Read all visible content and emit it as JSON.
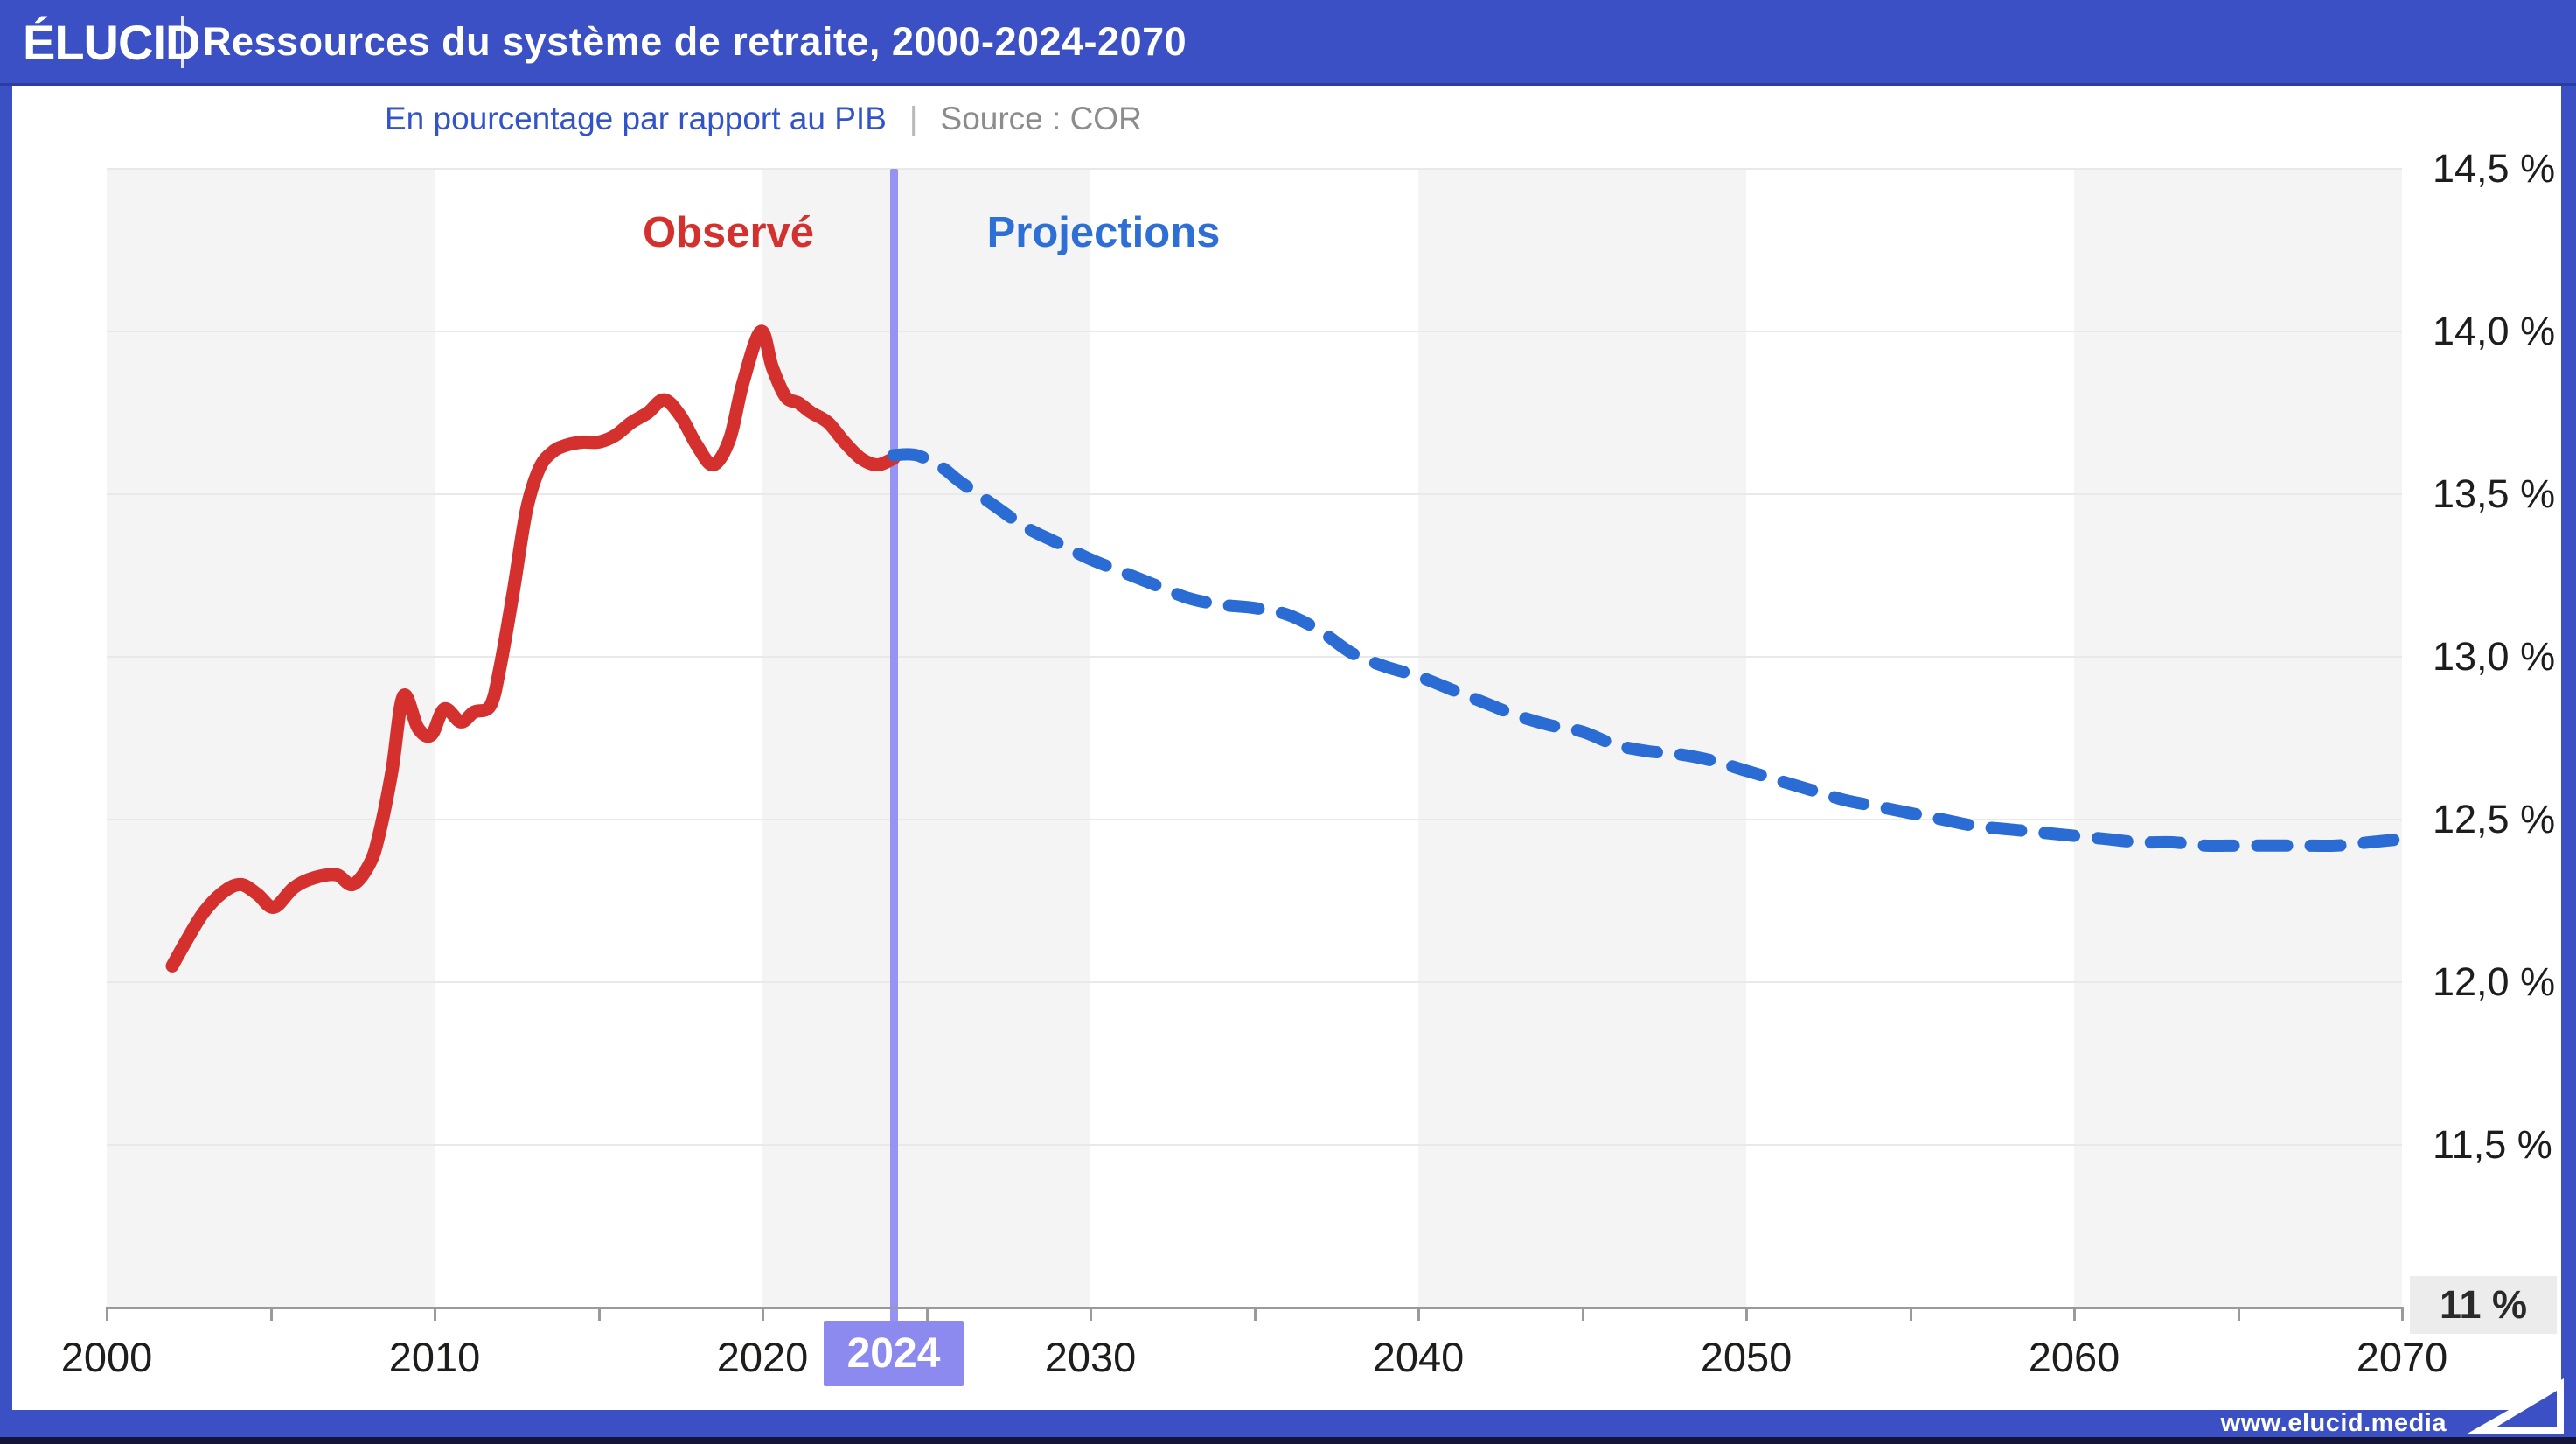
{
  "header": {
    "logo": "ÉLUCID",
    "title": "Ressources du système de retraite, 2000-2024-2070"
  },
  "subtitle": {
    "text": "En pourcentage par rapport au PIB",
    "divider": "|",
    "source": "Source : COR"
  },
  "plot": {
    "observed_label": "Observé",
    "projections_label": "Projections",
    "divider_label": "2024"
  },
  "y_axis": {
    "labels": [
      "14,5 %",
      "14,0 %",
      "13,5 %",
      "13,0 %",
      "12,5 %",
      "12,0 %",
      "11,5 %"
    ],
    "baseline_label": "11 %"
  },
  "x_axis": {
    "labels": [
      "2000",
      "2010",
      "2020",
      "2030",
      "2040",
      "2050",
      "2060",
      "2070"
    ]
  },
  "footer": {
    "url": "www.elucid.media"
  },
  "colors": {
    "frame_blue": "#3b50c4",
    "observed_red": "#d3302e",
    "projection_blue": "#2b6cd4",
    "divider_purple": "#9593f3",
    "divider_box_purple": "#8c8aee",
    "subtitle_blue": "#3354c8",
    "source_gray": "#8c8c8c",
    "band_gray": "#f4f4f5",
    "gridline_gray": "#e9e9e9",
    "axis_gray": "#9a9a9a",
    "text_dark": "#1d1d1b",
    "footer_navy": "#15153a",
    "baseline_box_gray": "#ececec"
  },
  "chart_data": {
    "type": "line",
    "title": "Ressources du système de retraite, 2000-2024-2070",
    "subtitle": "En pourcentage par rapport au PIB",
    "source": "COR",
    "unit": "% du PIB",
    "xlim": [
      2000,
      2070
    ],
    "ylim": [
      11,
      14.5
    ],
    "y_tick_values": [
      14.5,
      14.0,
      13.5,
      13.0,
      12.5,
      12.0,
      11.5,
      11.0
    ],
    "x_tick_step": 5,
    "x_label_step": 10,
    "grid": "horizontal",
    "background_bands_decades": [
      2000,
      2020,
      2040,
      2060
    ],
    "divider_year": 2024,
    "legend_position": "inline-top",
    "series": [
      {
        "name": "Observé",
        "style": "solid",
        "color": "#d3302e",
        "points": [
          [
            2002,
            12.05
          ],
          [
            2002.5,
            12.14
          ],
          [
            2003,
            12.22
          ],
          [
            2003.6,
            12.28
          ],
          [
            2004.1,
            12.3
          ],
          [
            2004.6,
            12.27
          ],
          [
            2005.1,
            12.23
          ],
          [
            2005.7,
            12.29
          ],
          [
            2006.3,
            12.32
          ],
          [
            2007,
            12.33
          ],
          [
            2007.5,
            12.3
          ],
          [
            2008,
            12.36
          ],
          [
            2008.3,
            12.45
          ],
          [
            2008.7,
            12.65
          ],
          [
            2009.05,
            12.88
          ],
          [
            2009.5,
            12.78
          ],
          [
            2009.9,
            12.76
          ],
          [
            2010.3,
            12.84
          ],
          [
            2010.8,
            12.8
          ],
          [
            2011.2,
            12.83
          ],
          [
            2011.7,
            12.85
          ],
          [
            2012,
            12.97
          ],
          [
            2012.4,
            13.2
          ],
          [
            2012.8,
            13.45
          ],
          [
            2013.2,
            13.58
          ],
          [
            2013.6,
            13.63
          ],
          [
            2014,
            13.65
          ],
          [
            2014.5,
            13.66
          ],
          [
            2015,
            13.66
          ],
          [
            2015.5,
            13.68
          ],
          [
            2016,
            13.72
          ],
          [
            2016.5,
            13.75
          ],
          [
            2017,
            13.79
          ],
          [
            2017.5,
            13.74
          ],
          [
            2018,
            13.65
          ],
          [
            2018.5,
            13.59
          ],
          [
            2019,
            13.67
          ],
          [
            2019.4,
            13.84
          ],
          [
            2019.95,
            14.0
          ],
          [
            2020.3,
            13.89
          ],
          [
            2020.7,
            13.8
          ],
          [
            2021.1,
            13.78
          ],
          [
            2021.5,
            13.75
          ],
          [
            2022,
            13.72
          ],
          [
            2022.5,
            13.66
          ],
          [
            2023,
            13.61
          ],
          [
            2023.5,
            13.59
          ],
          [
            2024,
            13.61
          ]
        ]
      },
      {
        "name": "Projections",
        "style": "dashed",
        "color": "#2b6cd4",
        "points": [
          [
            2024,
            13.62
          ],
          [
            2024.7,
            13.62
          ],
          [
            2025.5,
            13.58
          ],
          [
            2026,
            13.54
          ],
          [
            2027,
            13.47
          ],
          [
            2028,
            13.4
          ],
          [
            2029,
            13.35
          ],
          [
            2030,
            13.3
          ],
          [
            2031,
            13.26
          ],
          [
            2032,
            13.22
          ],
          [
            2033,
            13.18
          ],
          [
            2034,
            13.16
          ],
          [
            2035,
            13.15
          ],
          [
            2036,
            13.13
          ],
          [
            2037,
            13.08
          ],
          [
            2038,
            13.01
          ],
          [
            2039,
            12.97
          ],
          [
            2040,
            12.94
          ],
          [
            2041,
            12.9
          ],
          [
            2042,
            12.86
          ],
          [
            2043,
            12.82
          ],
          [
            2044,
            12.79
          ],
          [
            2045,
            12.77
          ],
          [
            2046,
            12.73
          ],
          [
            2047,
            12.71
          ],
          [
            2048,
            12.7
          ],
          [
            2049,
            12.68
          ],
          [
            2050,
            12.65
          ],
          [
            2051,
            12.62
          ],
          [
            2052,
            12.59
          ],
          [
            2053,
            12.56
          ],
          [
            2054,
            12.54
          ],
          [
            2055,
            12.52
          ],
          [
            2056,
            12.5
          ],
          [
            2057,
            12.48
          ],
          [
            2058,
            12.47
          ],
          [
            2059,
            12.46
          ],
          [
            2060,
            12.45
          ],
          [
            2061,
            12.44
          ],
          [
            2062,
            12.43
          ],
          [
            2063,
            12.43
          ],
          [
            2064,
            12.42
          ],
          [
            2065,
            12.42
          ],
          [
            2066,
            12.42
          ],
          [
            2067,
            12.42
          ],
          [
            2068,
            12.42
          ],
          [
            2069,
            12.43
          ],
          [
            2070,
            12.44
          ]
        ]
      }
    ],
    "annotations": [
      {
        "text": "Observé",
        "x": 2019,
        "y": 14.3,
        "color": "#d3302e"
      },
      {
        "text": "Projections",
        "x": 2030.4,
        "y": 14.3,
        "color": "#2e6fd6"
      },
      {
        "text": "2024",
        "x": 2024,
        "type": "vertical-divider",
        "color": "#9593f3"
      }
    ]
  }
}
